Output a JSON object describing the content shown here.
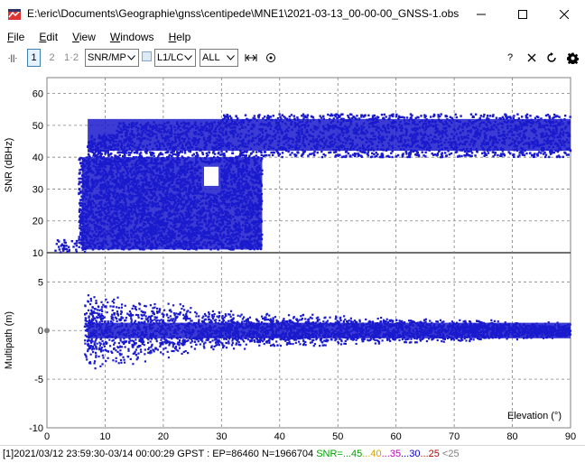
{
  "window": {
    "title": "E:\\eric\\Documents\\Geographie\\gnss\\centipede\\MNE1\\2021-03-13_00-00-00_GNSS-1.obs"
  },
  "menu": {
    "items": [
      "File",
      "Edit",
      "View",
      "Windows",
      "Help"
    ]
  },
  "toolbar": {
    "btn_collapse": "·||·",
    "btn_1": "1",
    "btn_2": "2",
    "btn_12": "1·2",
    "plot_type": "SNR/MP",
    "freq": "L1/LC",
    "sats": "ALL",
    "help": "?"
  },
  "chart_data": {
    "type": "scatter",
    "color": "#1a1acd",
    "x": {
      "label": "Elevation (°)",
      "range": [
        0,
        90
      ],
      "ticks": [
        0,
        10,
        20,
        30,
        40,
        50,
        60,
        70,
        80,
        90
      ]
    },
    "top": {
      "ylabel": "SNR (dBHz)",
      "range": [
        10,
        65
      ],
      "ticks": [
        10,
        20,
        30,
        40,
        50,
        60
      ],
      "description": "SNR density: upper band 40-54 dBHz for elevation 6-90; lower block 10-40 dBHz for elevation 5-37"
    },
    "bottom": {
      "ylabel": "Multipath (m)",
      "range": [
        -10,
        8
      ],
      "ticks": [
        -10,
        -5,
        0,
        5
      ],
      "description": "Multipath scatter roughly ±4 m at low elevation narrowing to ±1 m at high elevation"
    },
    "grid": true
  },
  "status": {
    "prefix": "[1]2021/03/12 23:59:30-03/14 00:00:29 GPST : EP=86460 N=1966704 ",
    "snr_label": "SNR=",
    "snr_levels": [
      {
        "text": "...45",
        "color": "#00a000"
      },
      {
        "text": "...40",
        "color": "#d4a000"
      },
      {
        "text": "...35",
        "color": "#c000c0"
      },
      {
        "text": "...30",
        "color": "#0000c0"
      },
      {
        "text": "...25",
        "color": "#c00000"
      },
      {
        "text": " <25",
        "color": "#808080"
      }
    ]
  }
}
